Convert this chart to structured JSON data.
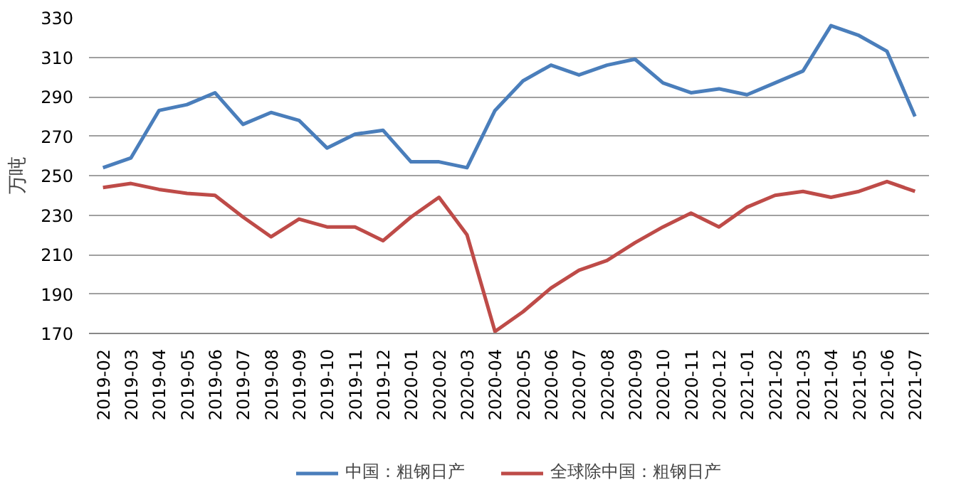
{
  "chart_data": {
    "type": "line",
    "ylabel": "万吨",
    "categories": [
      "2019-02",
      "2019-03",
      "2019-04",
      "2019-05",
      "2019-06",
      "2019-07",
      "2019-08",
      "2019-09",
      "2019-10",
      "2019-11",
      "2019-12",
      "2020-01",
      "2020-02",
      "2020-03",
      "2020-04",
      "2020-05",
      "2020-06",
      "2020-07",
      "2020-08",
      "2020-09",
      "2020-10",
      "2020-11",
      "2020-12",
      "2021-01",
      "2021-02",
      "2021-03",
      "2021-04",
      "2021-05",
      "2021-06",
      "2021-07"
    ],
    "series": [
      {
        "name": "中国：粗钢日产",
        "color": "#4a7ebb",
        "values": [
          254,
          259,
          283,
          286,
          292,
          276,
          282,
          278,
          264,
          271,
          273,
          257,
          257,
          254,
          283,
          298,
          306,
          301,
          306,
          309,
          297,
          292,
          294,
          291,
          297,
          303,
          326,
          321,
          313,
          280
        ]
      },
      {
        "name": "全球除中国：粗钢日产",
        "color": "#be4b48",
        "values": [
          244,
          246,
          243,
          241,
          240,
          229,
          219,
          228,
          224,
          224,
          217,
          229,
          239,
          220,
          171,
          181,
          193,
          202,
          207,
          216,
          224,
          231,
          224,
          234,
          240,
          242,
          239,
          242,
          247,
          242
        ]
      }
    ],
    "ylim": [
      170,
      330
    ],
    "yticks": [
      170,
      190,
      210,
      230,
      250,
      270,
      290,
      310,
      330
    ],
    "grid": "y",
    "legend": "bottom",
    "marker": "none",
    "line_style": "solid"
  }
}
